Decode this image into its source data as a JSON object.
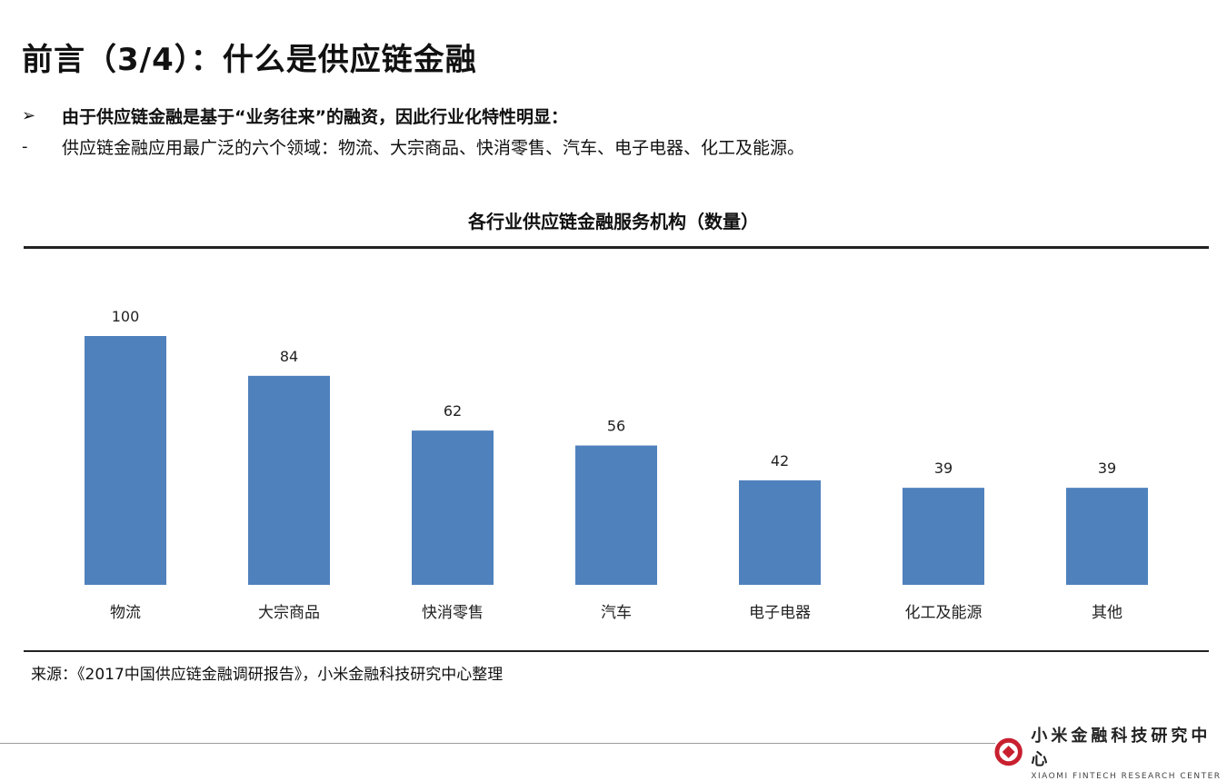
{
  "header": {
    "title": "前言（3/4）：什么是供应链金融"
  },
  "bullets": [
    {
      "marker": "➢",
      "text": "由于供应链金融是基于“业务往来”的融资，因此行业化特性明显："
    },
    {
      "marker": "-",
      "text": "供应链金融应用最广泛的六个领域：物流、大宗商品、快消零售、汽车、电子电器、化工及能源。"
    }
  ],
  "chart_data": {
    "type": "bar",
    "title": "各行业供应链金融服务机构（数量）",
    "categories": [
      "物流",
      "大宗商品",
      "快消零售",
      "汽车",
      "电子电器",
      "化工及能源",
      "其他"
    ],
    "values": [
      100,
      84,
      62,
      56,
      42,
      39,
      39
    ],
    "xlabel": "",
    "ylabel": "",
    "ylim": [
      0,
      100
    ],
    "grid": false,
    "legend": "none",
    "bar_color": "#4f81bd"
  },
  "footer": {
    "source": "来源：《2017中国供应链金融调研报告》，小米金融科技研究中心整理",
    "logo_cn": "小米金融科技研究中心",
    "logo_en": "XIAOMI FINTECH RESEARCH CENTER",
    "logo_color": "#c8202f"
  }
}
